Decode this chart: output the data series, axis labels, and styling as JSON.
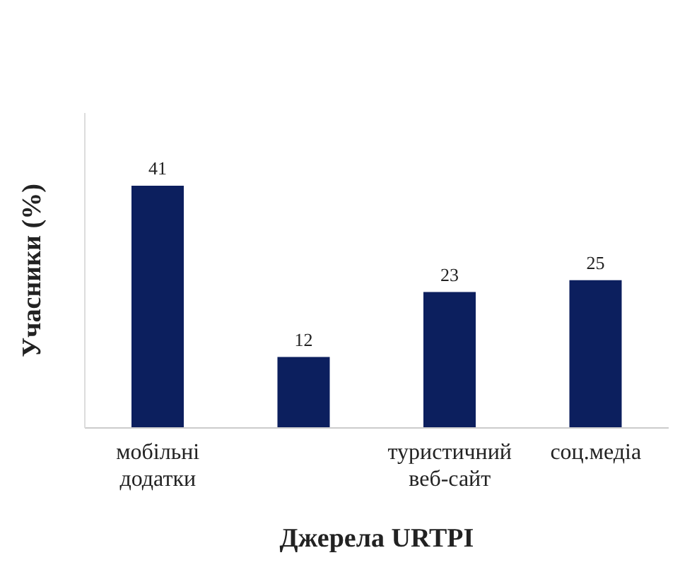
{
  "chart_data": {
    "type": "bar",
    "xlabel": "Джерела URTPI",
    "ylabel": "Учасники (%)",
    "categories": [
      "мобільні додатки",
      null,
      "туристичний веб-сайт",
      "соц.медіа"
    ],
    "values": [
      41,
      12,
      23,
      25
    ],
    "color": "#0c1f5e",
    "data_labels": true,
    "relative": false,
    "grid": false,
    "legend": false
  }
}
